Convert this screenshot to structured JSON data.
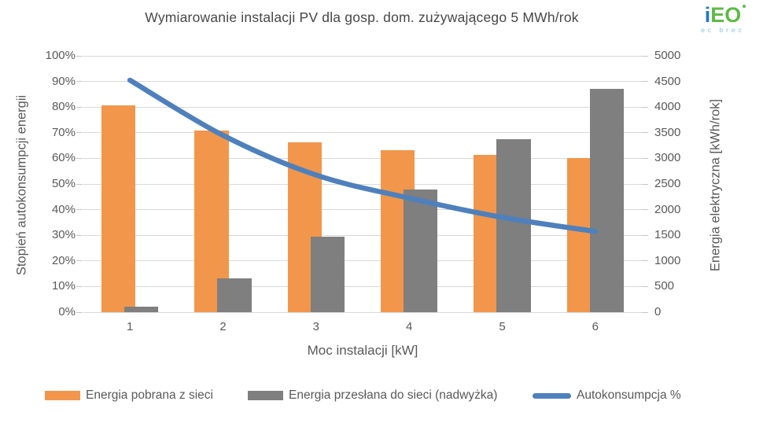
{
  "title": "Wymiarowanie instalacji PV dla gosp. dom. zużywającego 5 MWh/rok",
  "logo": {
    "part1": "i",
    "part2": "EO",
    "subtext": "ec brec",
    "color_blue": "#2478be",
    "color_green": "#5fba46",
    "color_subtext": "#7ec6e8"
  },
  "chart_data": {
    "type": "bar",
    "subtype": "clustered bars + smoothed line (dual axis)",
    "categories": [
      "1",
      "2",
      "3",
      "4",
      "5",
      "6"
    ],
    "series": [
      {
        "name": "Energia pobrana z sieci",
        "type": "bar",
        "axis": "right",
        "color": "#f2964b",
        "values_kwh": [
          4030,
          3550,
          3310,
          3160,
          3070,
          3010
        ]
      },
      {
        "name": "Energia przesłana do sieci (nadwyżka)",
        "type": "bar",
        "axis": "right",
        "color": "#7f7f7f",
        "values_kwh": [
          110,
          655,
          1465,
          2400,
          3370,
          4360
        ]
      },
      {
        "name": "Autokonsumpcja %",
        "type": "line",
        "axis": "left",
        "color": "#4e80bc",
        "values_percent": [
          90.5,
          69,
          53.5,
          44.5,
          37,
          31.5
        ]
      }
    ],
    "xlabel": "Moc instalacji [kW]",
    "ylabel_left": "Stopień autokonsumpcji energii",
    "ylabel_right": "Energia elektryczna [kWh/rok]",
    "y_left": {
      "min": 0,
      "max": 100,
      "step": 10,
      "suffix": "%"
    },
    "y_right": {
      "min": 0,
      "max": 5000,
      "step": 500,
      "suffix": ""
    },
    "grid": true,
    "gridline_color": "#d9d9d9",
    "legend_position": "bottom"
  }
}
